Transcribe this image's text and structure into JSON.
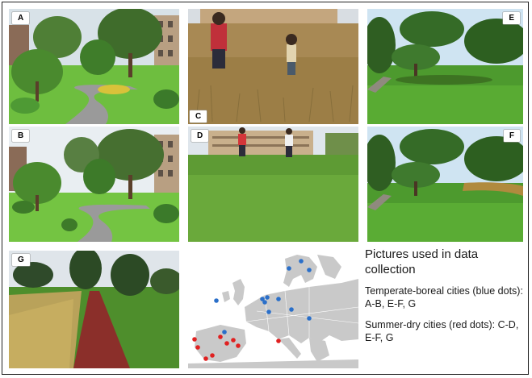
{
  "panels": {
    "A": "A",
    "B": "B",
    "C": "C",
    "D": "D",
    "E": "E",
    "F": "F",
    "G": "G"
  },
  "caption": {
    "title": "Pictures used in data collection",
    "temperate": "Temperate-boreal cities (blue dots): A-B, E-F, G",
    "summer_dry": "Summer-dry cities (red dots): C-D, E-F, G"
  },
  "map": {
    "blue_dot_color": "#2a6fc9",
    "red_dot_color": "#e02020",
    "land_color": "#c9c9c9",
    "sea_color": "#ffffff",
    "blue_city_count": 12,
    "red_city_count": 9
  }
}
